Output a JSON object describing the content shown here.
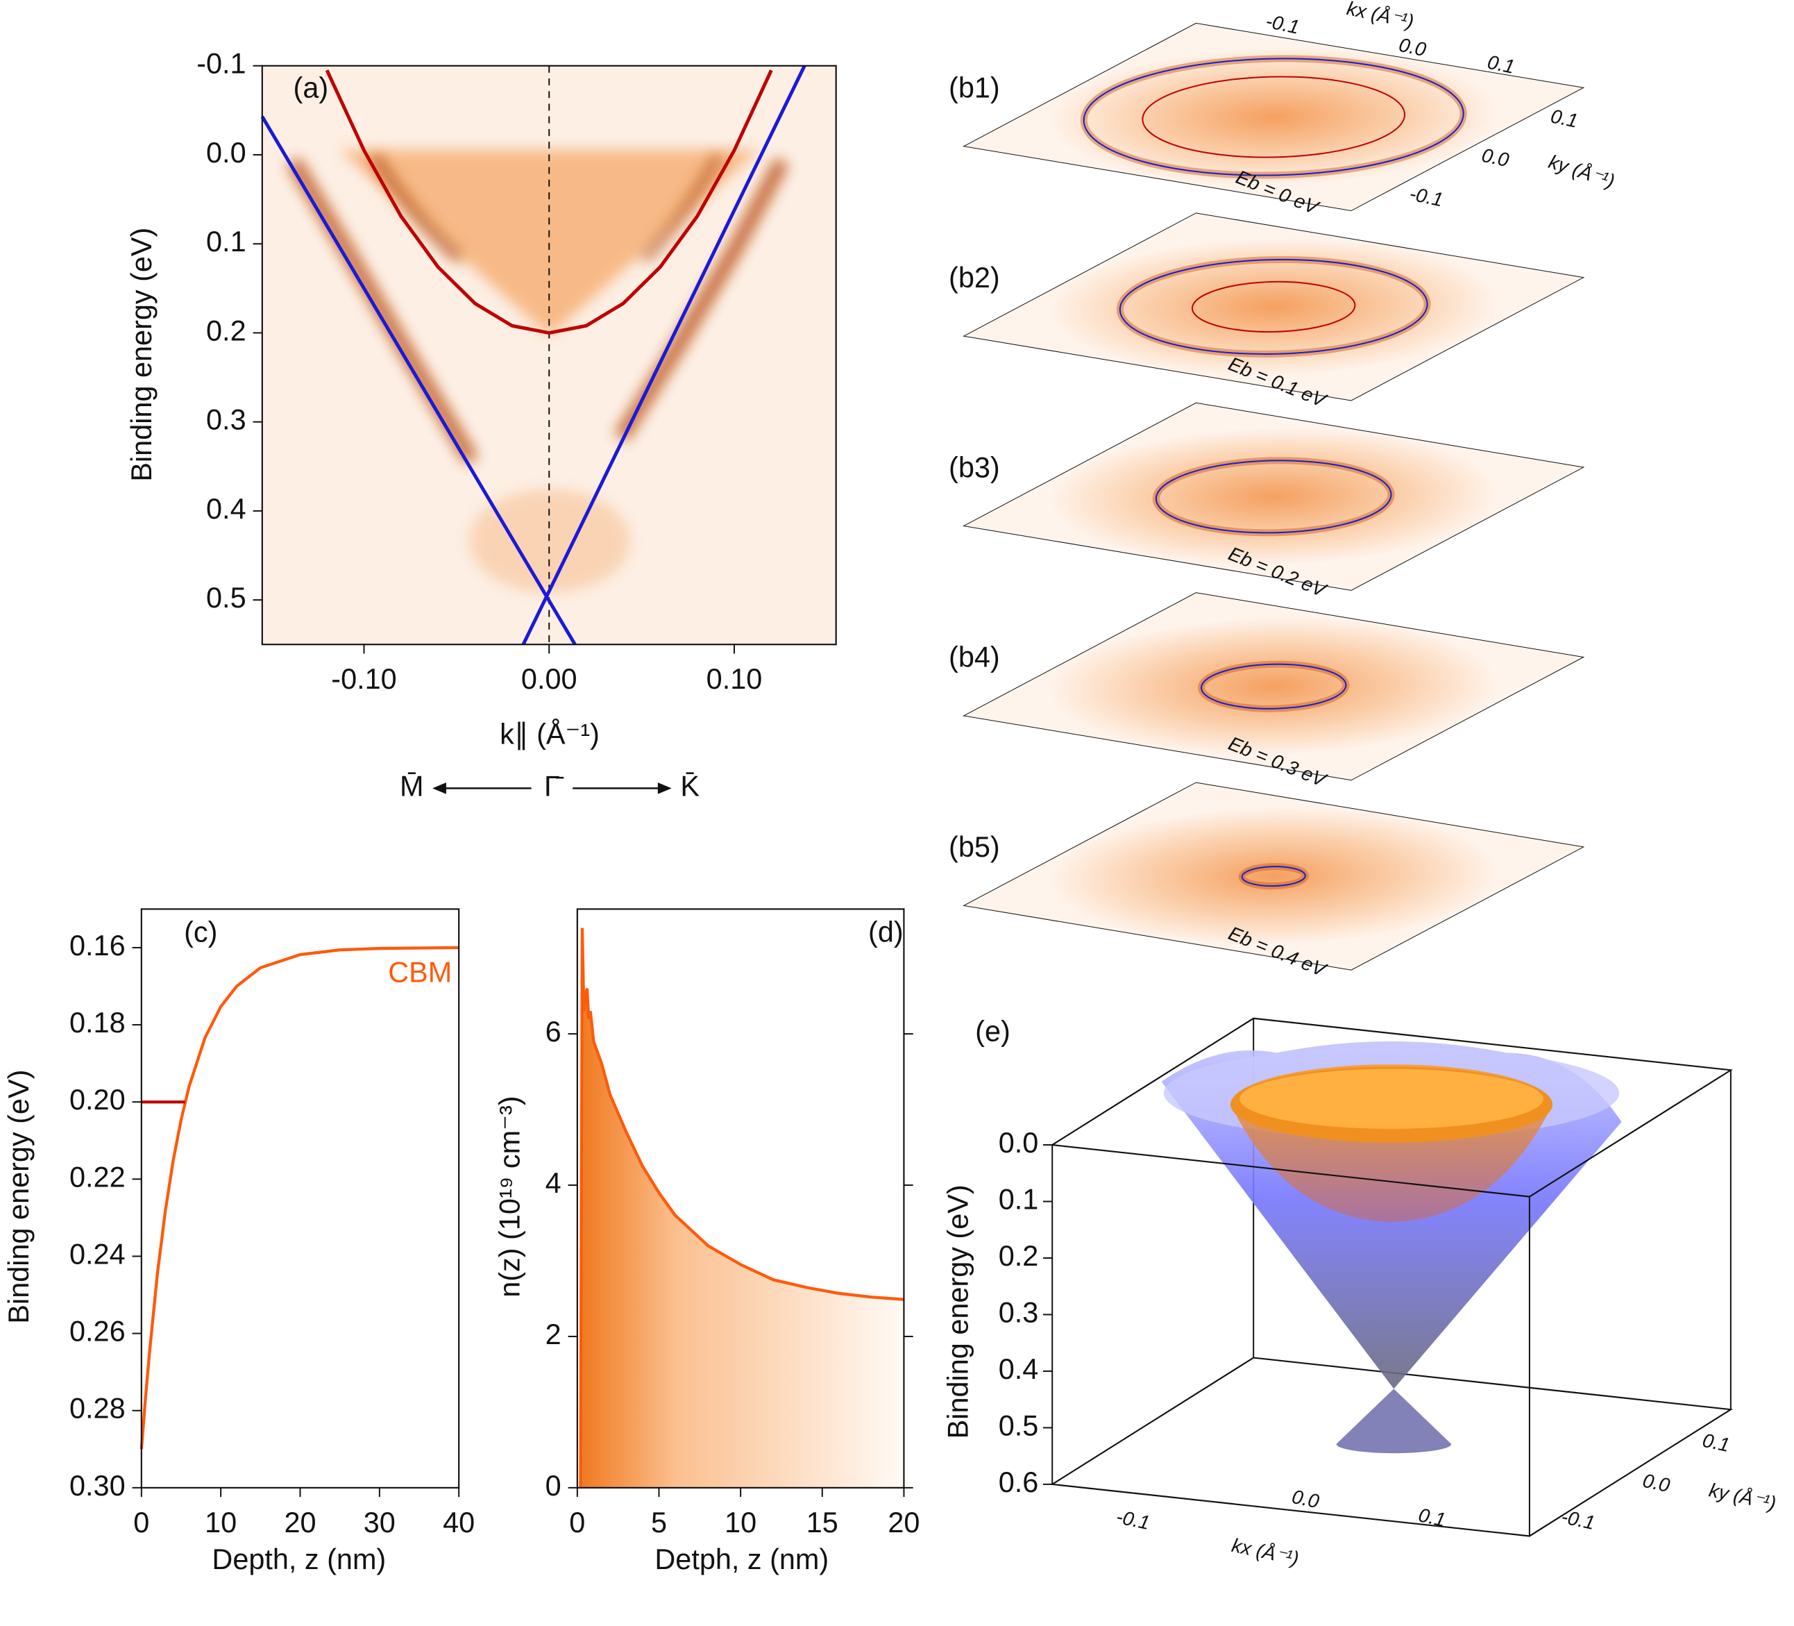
{
  "chart_data": [
    {
      "type": "line",
      "label": "(a)",
      "xlabel": "k∥ (Å⁻¹)",
      "ylabel": "Binding energy (eV)",
      "xlim": [
        -0.155,
        0.155
      ],
      "ylim": [
        -0.1,
        0.55
      ],
      "y_inverted": true,
      "xticks": [
        {
          "value": -0.1,
          "label": "-0.10"
        },
        {
          "value": 0,
          "label": "0.00"
        },
        {
          "value": 0.1,
          "label": "0.10"
        }
      ],
      "yticks": [
        -0.1,
        {
          "value": 0,
          "label": "0.0"
        },
        0.1,
        0.2,
        0.3,
        0.4,
        0.5
      ],
      "directions": [
        "M̄",
        "Γ̄",
        "K̄"
      ],
      "series": [
        {
          "color": "#c00000",
          "x": [
            -0.12,
            -0.1,
            -0.08,
            -0.06,
            -0.04,
            -0.02,
            0,
            0.02,
            0.04,
            0.06,
            0.08,
            0.1,
            0.12
          ],
          "values": [
            -0.095,
            -0.005,
            0.069,
            0.126,
            0.167,
            0.192,
            0.2,
            0.192,
            0.167,
            0.126,
            0.069,
            -0.005,
            -0.095
          ]
        },
        {
          "color": "#1a1ad8",
          "x": [
            -0.155,
            0.014
          ],
          "values": [
            -0.043,
            0.55
          ]
        },
        {
          "color": "#1a1ad8",
          "x": [
            -0.014,
            0.138
          ],
          "values": [
            0.55,
            -0.1
          ]
        }
      ]
    },
    {
      "type": "slices",
      "labels": [
        "(b1)",
        "(b2)",
        "(b3)",
        "(b4)",
        "(b5)"
      ],
      "energy_labels": [
        "Eb = 0 eV",
        "Eb = 0.1 eV",
        "Eb = 0.2 eV",
        "Eb = 0.3 eV",
        "Eb = 0.4 eV"
      ],
      "kx_label": "kx (Å⁻¹)",
      "ky_label": "ky (Å⁻¹)",
      "kx_ticks": [
        "-0.1",
        "0.0",
        "0.1"
      ],
      "ky_ticks": [
        "0.1",
        "0.0",
        "-0.1"
      ]
    },
    {
      "type": "line",
      "label": "(c)",
      "xlabel": "Depth, z (nm)",
      "ylabel": "Binding energy (eV)",
      "xlim": [
        0,
        40
      ],
      "ylim": [
        0.15,
        0.3
      ],
      "y_inverted": true,
      "xticks": [
        0,
        10,
        20,
        30,
        40
      ],
      "yticks": [
        0.16,
        0.18,
        {
          "value": 0.2,
          "label": "0.20"
        },
        0.22,
        0.24,
        0.26,
        0.28,
        {
          "value": 0.3,
          "label": "0.30"
        }
      ],
      "annotation": "CBM",
      "series": [
        {
          "color": "#ff5a0a",
          "x": [
            0,
            0.5,
            1,
            2,
            3,
            4,
            5,
            6,
            8,
            10,
            12,
            15,
            20,
            25,
            30,
            40
          ],
          "values": [
            0.29,
            0.2768,
            0.2653,
            0.2447,
            0.2284,
            0.2152,
            0.2046,
            0.196,
            0.1834,
            0.1753,
            0.17,
            0.1652,
            0.1618,
            0.1606,
            0.1602,
            0.16
          ]
        },
        {
          "color": "#c00000",
          "x": [
            0,
            5.5
          ],
          "values": [
            0.2,
            0.2
          ]
        }
      ]
    },
    {
      "type": "area",
      "label": "(d)",
      "xlabel": "Detph, z (nm)",
      "ylabel": "n(z) (10¹⁹ cm⁻³)",
      "xlim": [
        0,
        20
      ],
      "ylim": [
        0,
        7.65
      ],
      "xticks": [
        0,
        5,
        10,
        15,
        20
      ],
      "yticks": [
        0,
        2,
        4,
        6
      ],
      "series": [
        {
          "color": "#ff5a0a",
          "x": [
            0.2,
            0.3,
            0.4,
            0.5,
            0.6,
            0.7,
            0.8,
            1,
            1.5,
            2,
            3,
            4,
            5,
            6,
            7,
            8,
            10,
            12,
            14,
            16,
            18,
            20
          ],
          "values": [
            0,
            7.4,
            6.3,
            6.5,
            6.6,
            6.2,
            6.3,
            5.9,
            5.6,
            5.2,
            4.7,
            4.25,
            3.9,
            3.6,
            3.4,
            3.2,
            2.95,
            2.75,
            2.65,
            2.57,
            2.52,
            2.49
          ]
        }
      ]
    },
    {
      "type": "surface3d",
      "label": "(e)",
      "zlabel": "Binding energy (eV)",
      "zlim": [
        0,
        0.6
      ],
      "zticks": [
        {
          "value": 0,
          "label": "0.0"
        },
        0.1,
        0.2,
        0.3,
        0.4,
        0.5,
        0.6
      ],
      "kx_label": "kx (Å⁻¹)",
      "ky_label": "ky (Å⁻¹)",
      "kx_ticks": [
        "-0.1",
        "0.0",
        "0.1"
      ],
      "ky_ticks": [
        "0.1",
        "0.0",
        "-0.1"
      ]
    }
  ]
}
